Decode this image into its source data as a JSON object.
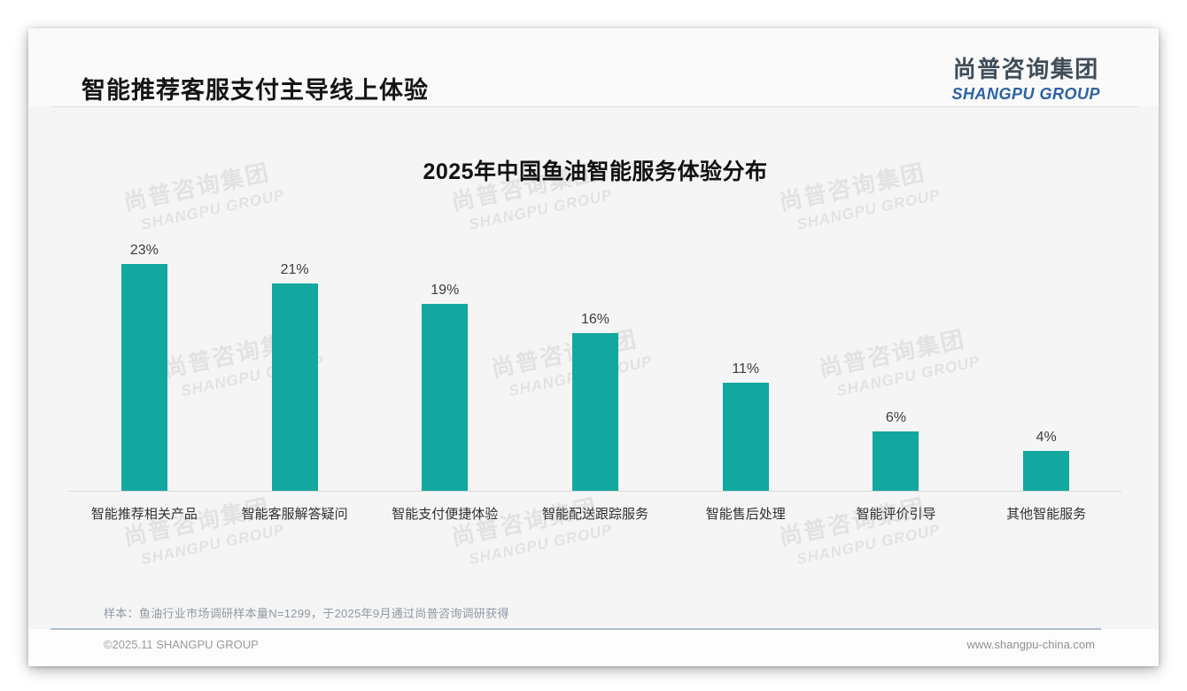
{
  "page": {
    "title": "智能推荐客服支付主导线上体验",
    "logo": {
      "zh": "尚普咨询集团",
      "en": "SHANGPU GROUP"
    },
    "watermark": {
      "zh": "尚普咨询集团",
      "en": "SHANGPU GROUP"
    },
    "footer": {
      "note": "样本：鱼油行业市场调研样本量N=1299，于2025年9月通过尚普咨询调研获得",
      "copyright": "©2025.11 SHANGPU GROUP",
      "website": "www.shangpu-china.com"
    },
    "colors": {
      "bar": "#12a89f",
      "logo_blue": "#2d62a4",
      "title_text": "#151515",
      "footer_divider": "#aebecb",
      "watermark_gray": "#e2e2e2"
    }
  },
  "chart_data": {
    "type": "bar",
    "title": "2025年中国鱼油智能服务体验分布",
    "categories": [
      "智能推荐相关产品",
      "智能客服解答疑问",
      "智能支付便捷体验",
      "智能配送跟踪服务",
      "智能售后处理",
      "智能评价引导",
      "其他智能服务"
    ],
    "values": [
      23,
      21,
      19,
      16,
      11,
      6,
      4
    ],
    "value_labels": [
      "23%",
      "21%",
      "19%",
      "16%",
      "11%",
      "6%",
      "4%"
    ],
    "unit": "%",
    "xlabel": "",
    "ylabel": "",
    "ylim": [
      0,
      25
    ],
    "grid": false,
    "legend_position": "none",
    "bar_color": "#12a89f"
  }
}
